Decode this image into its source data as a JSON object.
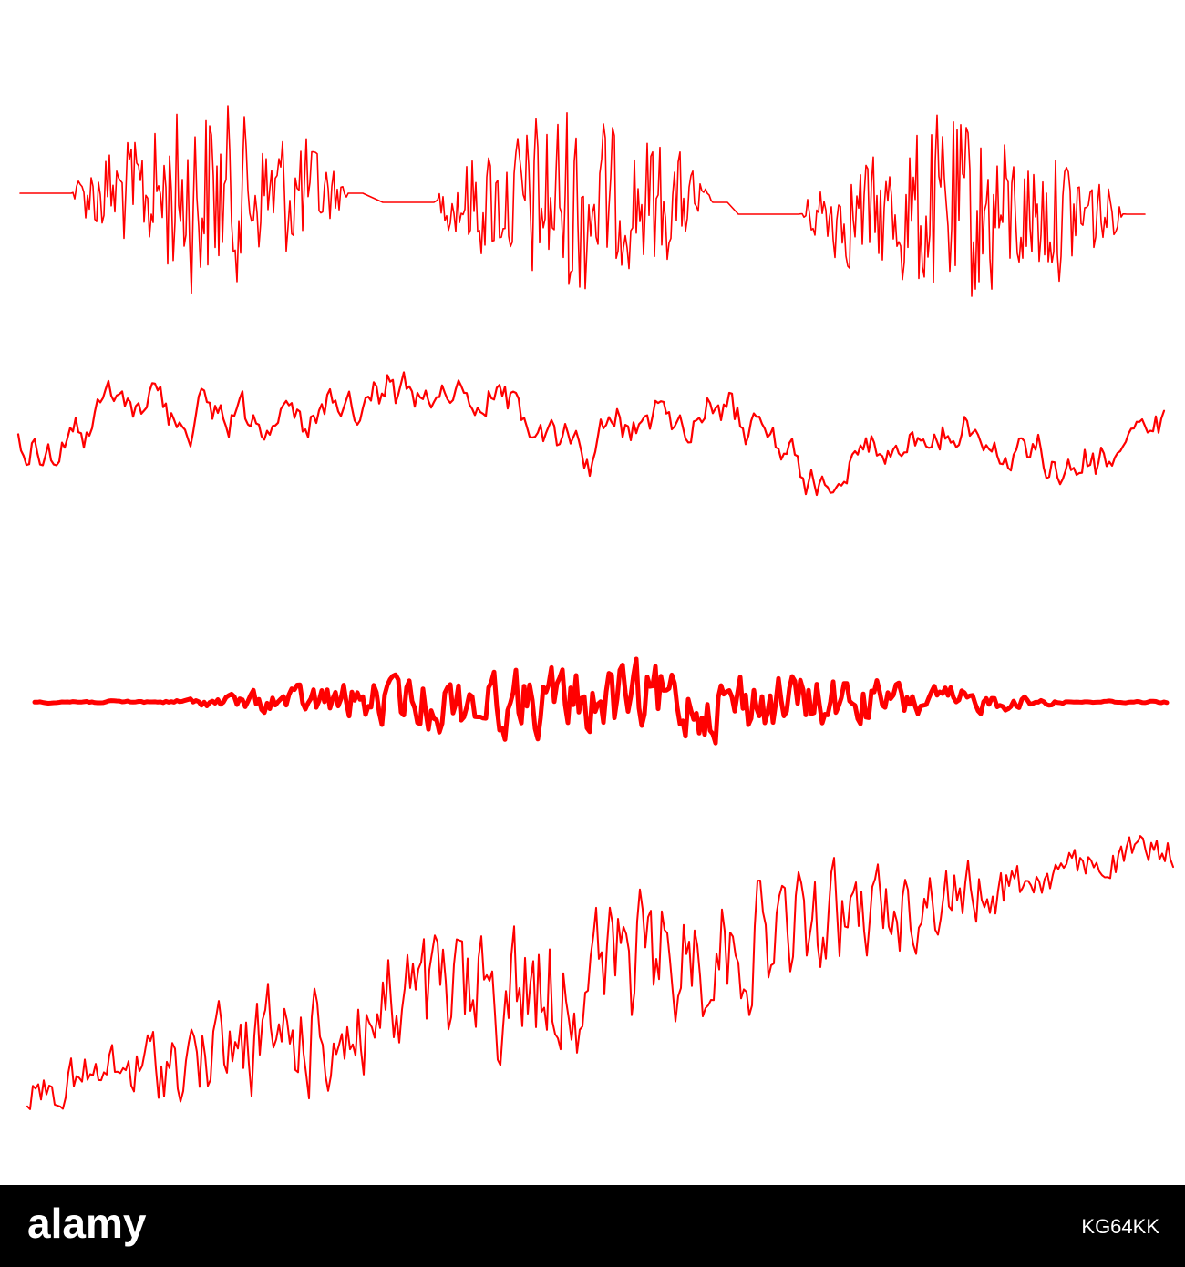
{
  "watermark": {
    "logo": "alamy",
    "image_id": "KG64KK"
  }
}
